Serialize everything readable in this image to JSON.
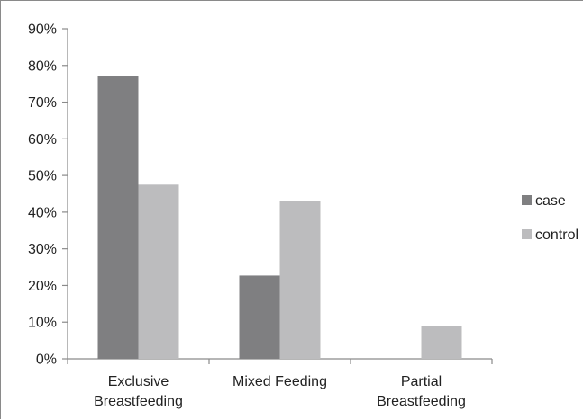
{
  "chart_data": {
    "type": "bar",
    "categories": [
      [
        "Exclusive",
        "Breastfeeding"
      ],
      [
        "Mixed Feeding"
      ],
      [
        "Partial",
        "Breastfeeding"
      ]
    ],
    "series": [
      {
        "name": "case",
        "values": [
          77,
          22.7,
          0
        ],
        "color": "#7f7f81"
      },
      {
        "name": "control",
        "values": [
          47.5,
          43,
          9
        ],
        "color": "#bcbcbe"
      }
    ],
    "y_ticks": [
      "0%",
      "10%",
      "20%",
      "30%",
      "40%",
      "50%",
      "60%",
      "70%",
      "80%",
      "90%"
    ],
    "ylim": [
      0,
      90
    ],
    "title": "",
    "xlabel": "",
    "ylabel": "",
    "grid": false,
    "legend_position": "right"
  }
}
